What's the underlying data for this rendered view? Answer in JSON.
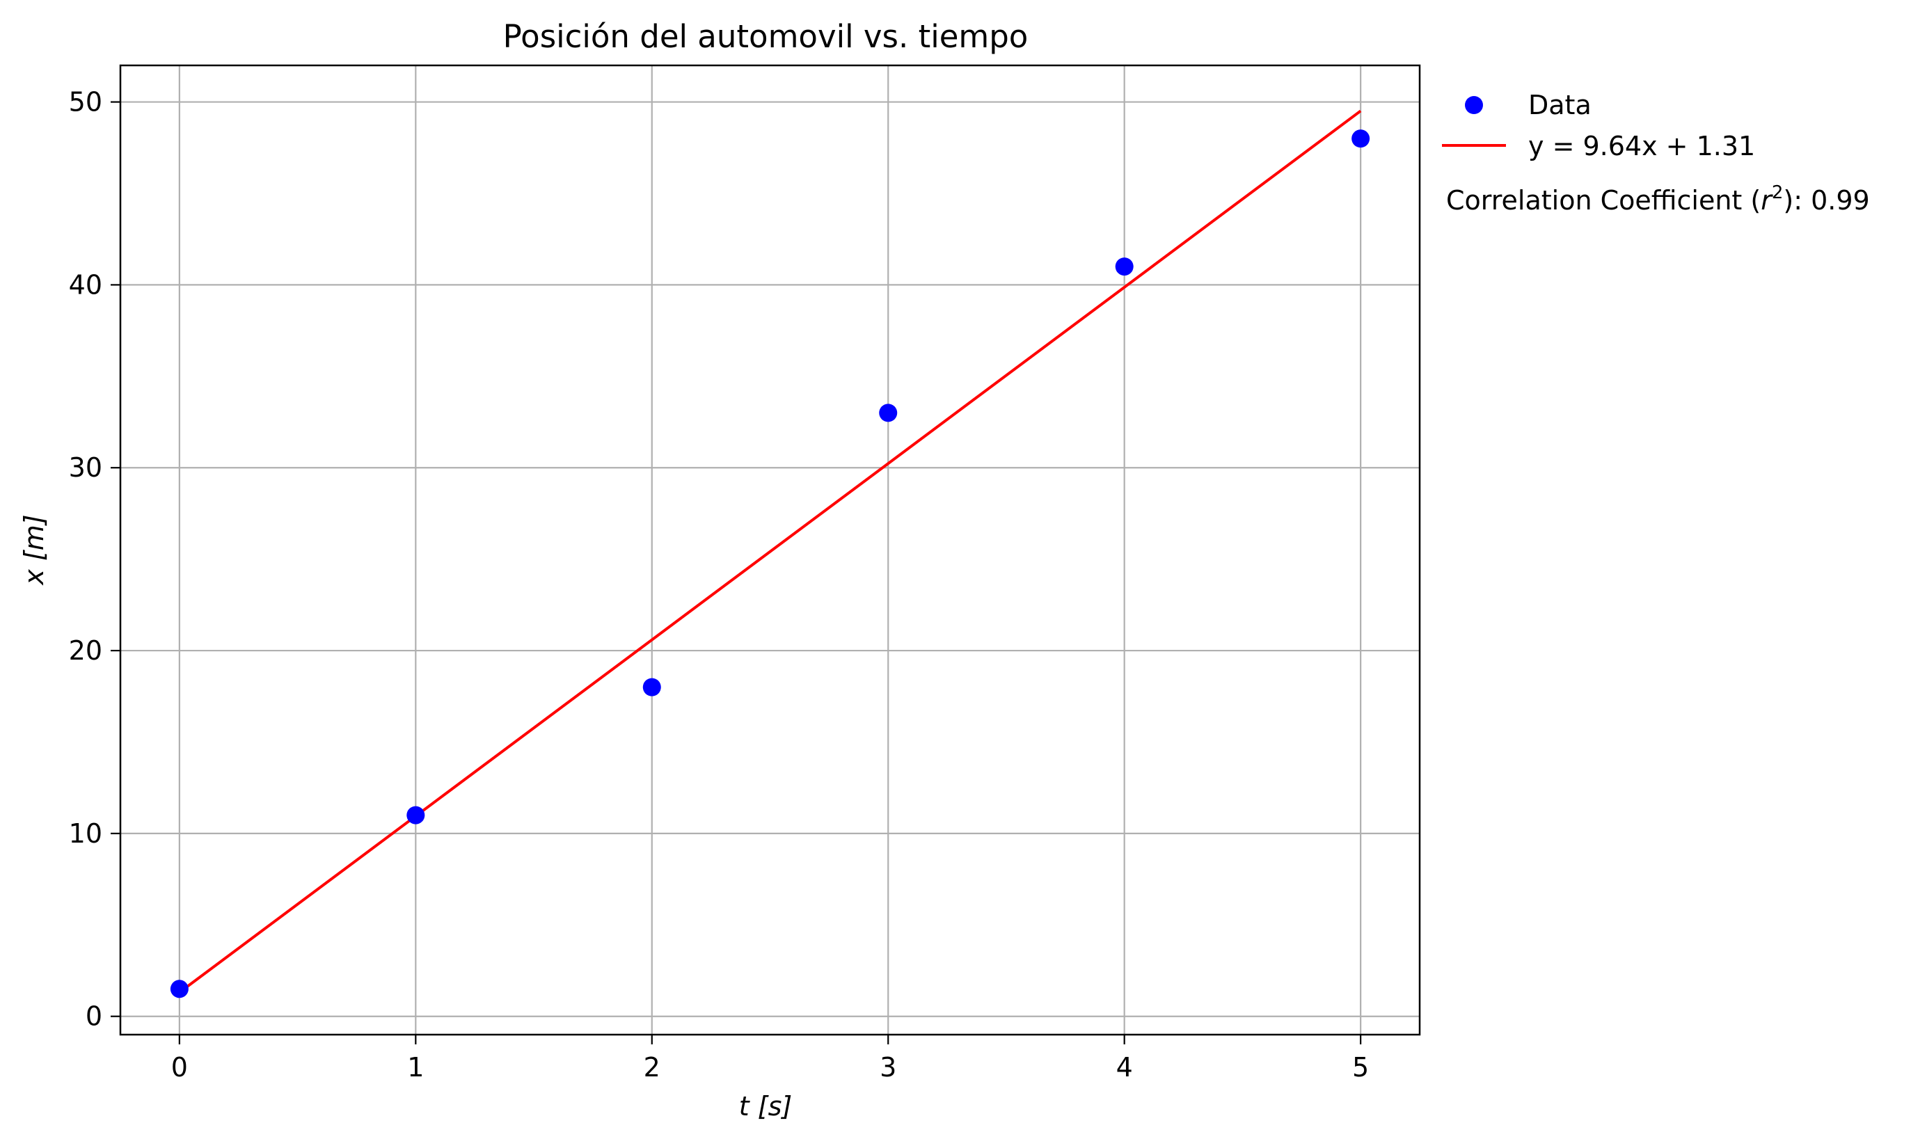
{
  "chart_data": {
    "type": "scatter",
    "title": "Posición del automovil vs. tiempo",
    "xlabel": "t [s]",
    "ylabel": "x [m]",
    "xlim": [
      -0.25,
      5.25
    ],
    "ylim": [
      -1,
      52
    ],
    "xticks": [
      0,
      1,
      2,
      3,
      4,
      5
    ],
    "yticks": [
      0,
      10,
      20,
      30,
      40,
      50
    ],
    "grid": true,
    "legend_position": "outside-right-top",
    "colors": {
      "points": "#0000ff",
      "fit": "#ff0000",
      "grid": "#b0b0b0"
    },
    "series": [
      {
        "name": "Data",
        "type": "scatter",
        "x": [
          0,
          1,
          2,
          3,
          4,
          5
        ],
        "y": [
          1.5,
          11,
          18,
          33,
          41,
          48
        ]
      },
      {
        "name": "y = 9.64x + 1.31",
        "type": "line",
        "x": [
          0,
          5
        ],
        "y": [
          1.31,
          49.51
        ]
      }
    ],
    "annotation": {
      "prefix": "Correlation Coefficient (",
      "var": "r",
      "sup": "2",
      "suffix": "): 0.99"
    }
  }
}
